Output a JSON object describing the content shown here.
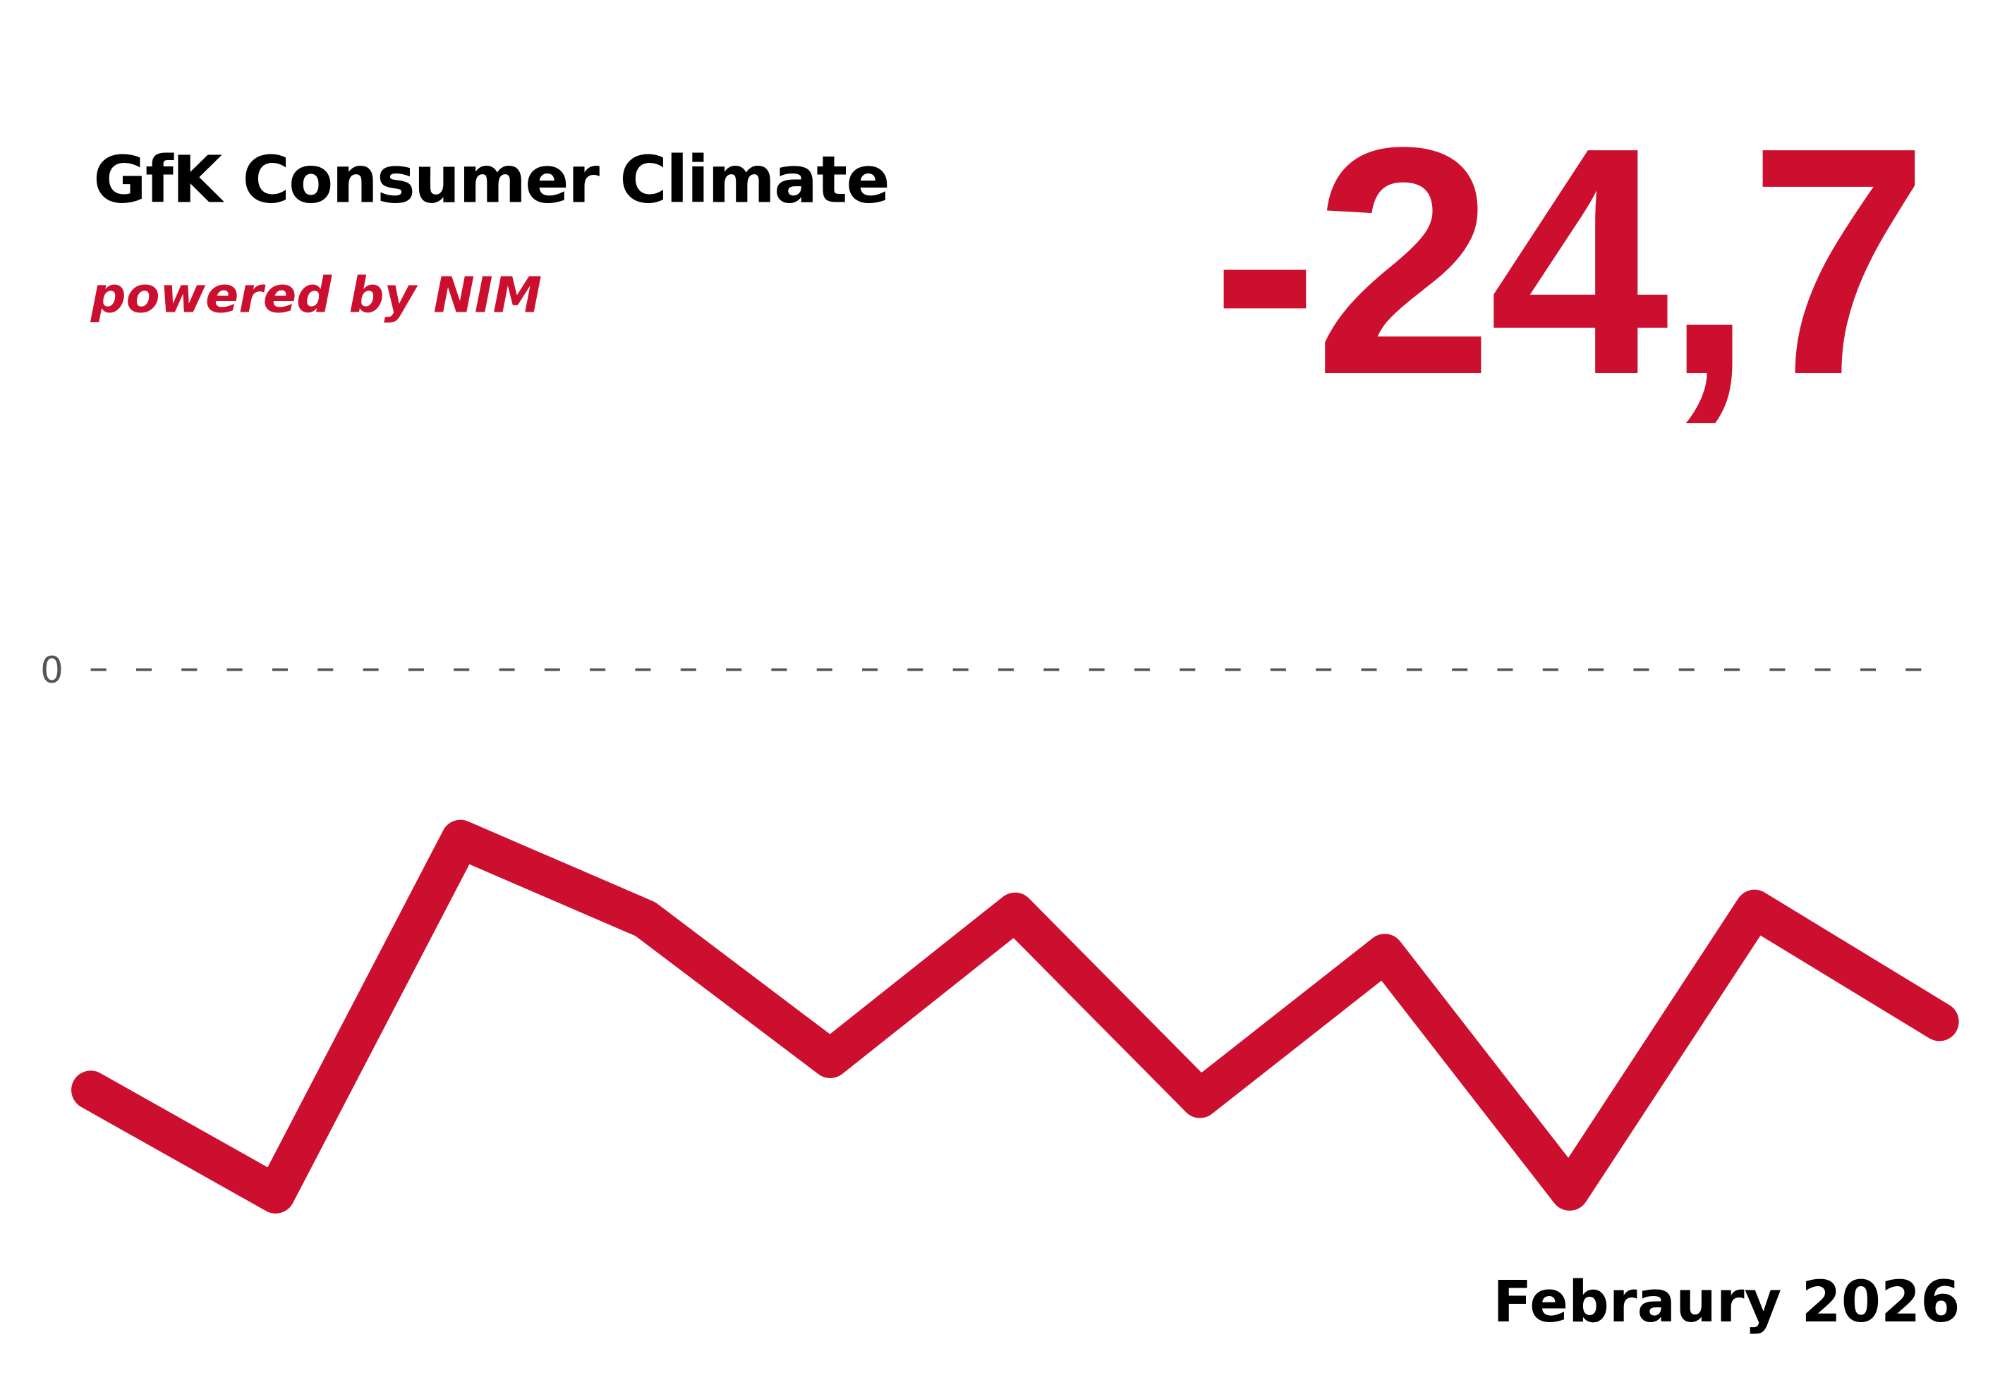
{
  "chart_data": {
    "type": "line",
    "title": "GfK Consumer Climate",
    "subtitle": "powered by NIM",
    "annotation": "Febraury 2026",
    "categories": [
      null,
      null,
      null,
      null,
      null,
      null,
      null,
      null,
      null,
      null,
      null
    ],
    "values": [
      -29.5,
      -36.8,
      -11.9,
      -17.5,
      -27.3,
      -17.0,
      -30.1,
      -19.9,
      -36.6,
      -16.8,
      -24.7
    ],
    "value_labels": [
      null,
      null,
      null,
      null,
      null,
      null,
      null,
      null,
      null,
      null,
      "-24,7"
    ],
    "color": "#cc0f2f",
    "ylim": [
      -40,
      5
    ],
    "yticks": [
      0
    ],
    "grid": true
  }
}
